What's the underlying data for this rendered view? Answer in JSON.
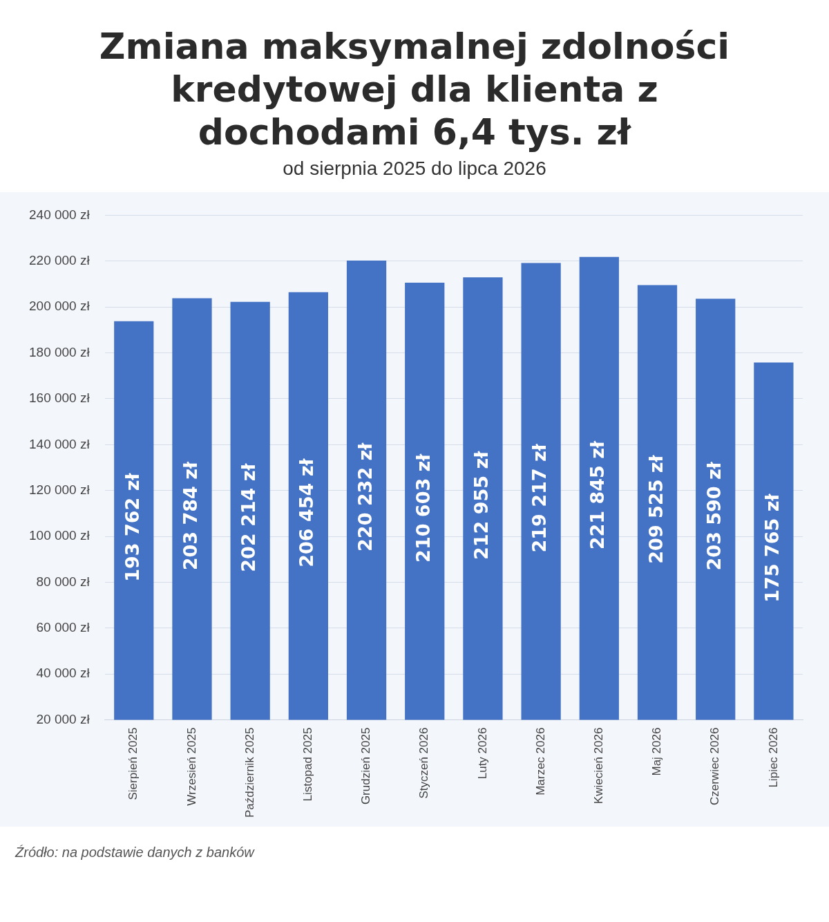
{
  "chart_data": {
    "type": "bar",
    "title": "Zmiana maksymalnej zdolności kredytowej dla klienta z dochodami 6,4 tys. zł",
    "subtitle": "od sierpnia 2025 do lipca 2026",
    "categories": [
      "Sierpień 2025",
      "Wrzesień 2025",
      "Październik 2025",
      "Listopad 2025",
      "Grudzień 2025",
      "Styczeń 2026",
      "Luty 2026",
      "Marzec 2026",
      "Kwiecień 2026",
      "Maj 2026",
      "Czerwiec 2026",
      "Lipiec 2026"
    ],
    "values": [
      193762,
      203784,
      202214,
      206454,
      220232,
      210603,
      212955,
      219217,
      221845,
      209525,
      203590,
      175765
    ],
    "value_labels": [
      "193 762 zł",
      "203 784 zł",
      "202 214 zł",
      "206 454 zł",
      "220 232 zł",
      "210 603 zł",
      "212 955 zł",
      "219 217 zł",
      "221 845 zł",
      "209 525 zł",
      "203 590 zł",
      "175 765 zł"
    ],
    "color": "#4472c4",
    "ylim": [
      20000,
      240000
    ],
    "yticks": [
      {
        "value": 20000,
        "label": "20 000 zł"
      },
      {
        "value": 40000,
        "label": "40 000 zł"
      },
      {
        "value": 60000,
        "label": "60 000 zł"
      },
      {
        "value": 80000,
        "label": "80 000 zł"
      },
      {
        "value": 100000,
        "label": "100 000 zł"
      },
      {
        "value": 120000,
        "label": "120 000 zł"
      },
      {
        "value": 140000,
        "label": "140 000 zł"
      },
      {
        "value": 160000,
        "label": "160 000 zł"
      },
      {
        "value": 180000,
        "label": "180 000 zł"
      },
      {
        "value": 200000,
        "label": "200 000 zł"
      },
      {
        "value": 220000,
        "label": "220 000 zł"
      },
      {
        "value": 240000,
        "label": "240 000 zł"
      }
    ],
    "grid": "y",
    "annotations": [
      "Źródło: na podstawie danych z banków"
    ]
  }
}
